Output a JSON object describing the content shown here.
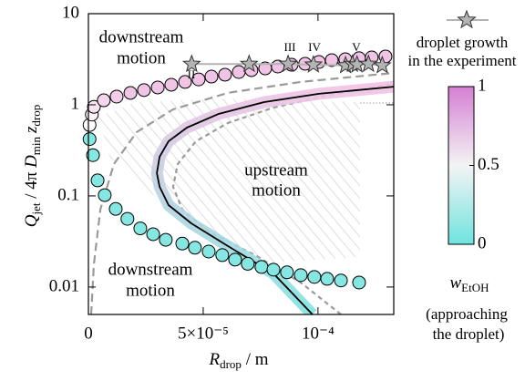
{
  "chart_data": {
    "type": "scatter",
    "xlabel": [
      "R",
      "drop",
      " / m"
    ],
    "ylabel": [
      "Q",
      "jet",
      " / 4π ",
      "D",
      "min",
      "z",
      "drop"
    ],
    "xlim": [
      0,
      0.000133
    ],
    "xticks": [
      0,
      {
        "value": 5e-05,
        "label": "5×10⁻⁵"
      },
      {
        "value": 0.0001,
        "label": "10⁻⁴"
      }
    ],
    "ylim": [
      0.005,
      10
    ],
    "yscale": "log",
    "yticks": [
      0.01,
      0.1,
      1,
      10
    ],
    "series": [
      {
        "x": [
          5e-07,
          1.5e-06,
          2.4e-06,
          6.7e-06,
          1.23e-05,
          1.83e-05,
          2.42e-05,
          3.02e-05,
          3.61e-05,
          4.21e-05,
          4.8e-05,
          5.36e-05,
          5.95e-05,
          6.55e-05,
          7.1e-05,
          7.7e-05,
          8.25e-05,
          8.85e-05,
          9.44e-05,
          0.0001004,
          0.000106,
          0.0001119,
          0.0001179,
          0.0001234,
          0.0001294
        ],
        "values": [
          0.6,
          0.78,
          0.95,
          1.12,
          1.23,
          1.35,
          1.45,
          1.55,
          1.66,
          1.78,
          1.9,
          2.04,
          2.14,
          2.29,
          2.4,
          2.51,
          2.63,
          2.75,
          2.82,
          2.95,
          3.09,
          3.16,
          3.24,
          3.31,
          3.39
        ],
        "colors": [
          "#ffffff",
          "#fdf3f9",
          "#f9e4f1",
          "#f5d6ec",
          "#f2cce8",
          "#f0c6e5",
          "#f0c4e4",
          "#f0c4e4",
          "#f0c4e4",
          "#f0c4e4",
          "#f0c4e4",
          "#f0c4e4",
          "#f0c4e4",
          "#f0c4e4",
          "#f0c4e4",
          "#f0c4e4",
          "#f0c4e4",
          "#f0c4e4",
          "#f0c4e4",
          "#f0c4e4",
          "#f0c4e4",
          "#f0c4e4",
          "#f0c4e4",
          "#f0c4e4",
          "#f0c4e4"
        ]
      },
      {
        "x": [
          5e-07,
          2e-06,
          4e-06,
          7.1e-06,
          1.19e-05,
          1.7e-05,
          2.26e-05,
          2.82e-05,
          3.37e-05,
          4.09e-05,
          4.64e-05,
          5.24e-05,
          5.83e-05,
          6.39e-05,
          6.94e-05,
          7.54e-05,
          8.06e-05,
          8.65e-05,
          9.25e-05,
          9.84e-05,
          0.000104,
          0.00011,
          0.0001179
        ],
        "values": [
          0.42,
          0.28,
          0.148,
          0.102,
          0.072,
          0.056,
          0.044,
          0.038,
          0.033,
          0.03,
          0.027,
          0.0245,
          0.0224,
          0.02,
          0.018,
          0.0166,
          0.0155,
          0.0145,
          0.0135,
          0.0129,
          0.0123,
          0.0118,
          0.0112
        ],
        "color": "#86e6e2"
      }
    ],
    "curves": [
      {
        "x": [
          1.2e-06,
          2.4e-06,
          5.2e-06,
          1.11e-05,
          2.1e-05,
          3.69e-05,
          6.07e-05,
          9.25e-05,
          0.000133
        ],
        "values": [
          0.005,
          0.0178,
          0.0708,
          0.224,
          0.501,
          0.891,
          1.35,
          1.78,
          2.24
        ],
        "color": "#9a9a9a",
        "style": "dashed"
      },
      {
        "x": [
          0.00011,
          9.25e-05,
          7.26e-05,
          5.28e-05,
          4.09e-05,
          3.69e-05,
          3.89e-05,
          4.68e-05,
          6.07e-05,
          8.06e-05,
          0.000104,
          0.000133
        ],
        "values": [
          0.005,
          0.0112,
          0.0224,
          0.0398,
          0.0708,
          0.126,
          0.224,
          0.398,
          0.631,
          0.933,
          1.26,
          1.7
        ],
        "color": "#9a9a9a",
        "style": "short-dashed"
      },
      {
        "x": [
          9.76e-05,
          8.06e-05,
          6.07e-05,
          4.48e-05,
          3.49e-05,
          3.1e-05,
          2.98e-05,
          3.1e-05,
          3.49e-05,
          4.29e-05,
          5.67e-05,
          7.66e-05,
          0.0001004,
          0.000133
        ],
        "values": [
          0.005,
          0.0141,
          0.0282,
          0.05,
          0.0794,
          0.126,
          0.178,
          0.269,
          0.398,
          0.562,
          0.794,
          1.07,
          1.32,
          1.58
        ],
        "color": "#000000",
        "style": "solid",
        "band_colors": [
          "#7fe3e0",
          "#f2c2e4"
        ]
      }
    ],
    "stars": {
      "legend": [
        "droplet growth",
        "in the experiment"
      ],
      "x": [
        4.5e-05,
        7e-05,
        8.7e-05,
        9.8e-05,
        0.000112,
        0.000115,
        0.000117,
        0.000122,
        0.000128
      ],
      "values": [
        2.8,
        2.8,
        2.8,
        2.75,
        2.7,
        2.8,
        2.75,
        2.8,
        2.7
      ],
      "color": "#b4b4b4",
      "labels": [
        "II",
        "III",
        "IV",
        "V"
      ]
    },
    "regions": [
      [
        "downstream",
        "motion"
      ],
      [
        "upstream",
        "motion"
      ],
      [
        "downstream",
        "motion"
      ]
    ],
    "colorbar": {
      "label": [
        "w",
        "EtOH"
      ],
      "note": [
        "(approaching",
        "the droplet)"
      ],
      "lim": [
        0,
        1
      ],
      "ticks": [
        0,
        0.5,
        1
      ],
      "colors": [
        "#6fe3df",
        "#f4f4f4",
        "#d57fd3"
      ]
    }
  }
}
